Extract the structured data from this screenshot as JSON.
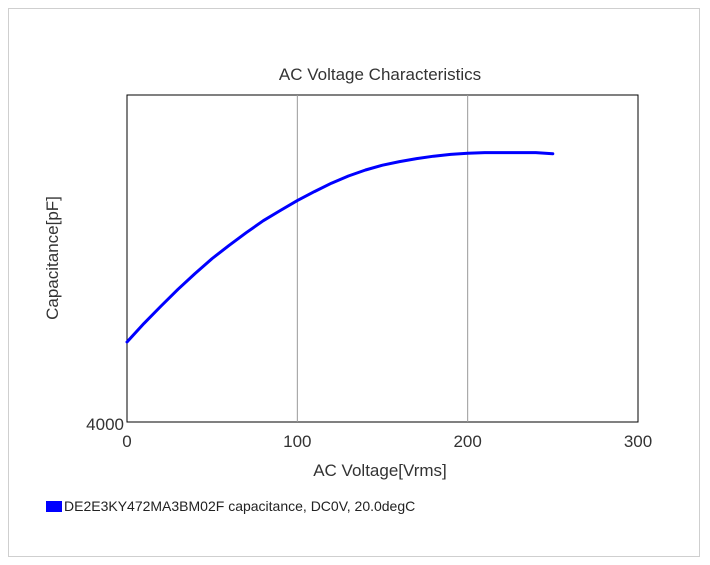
{
  "chart_data": {
    "type": "line",
    "title": "AC Voltage Characteristics",
    "xlabel": "AC Voltage[Vrms]",
    "ylabel": "Capacitance[pF]",
    "xlim": [
      0,
      300
    ],
    "ylim": [
      4000,
      null
    ],
    "xticks": [
      "0",
      "100",
      "200",
      "300"
    ],
    "yticks": [
      "4000"
    ],
    "grid": "vertical",
    "legend_position": "bottom-left",
    "series": [
      {
        "name": "DE2E3KY472MA3BM02F capacitance, DC0V, 20.0degC",
        "color": "#0000ff",
        "x": [
          0,
          10,
          20,
          30,
          40,
          50,
          60,
          70,
          80,
          90,
          100,
          110,
          120,
          130,
          140,
          150,
          160,
          170,
          180,
          190,
          200,
          210,
          220,
          230,
          240,
          250
        ],
        "y_norm": [
          0.2445,
          0.3014,
          0.3547,
          0.4062,
          0.4541,
          0.5,
          0.5404,
          0.5789,
          0.6155,
          0.6468,
          0.6771,
          0.7046,
          0.7303,
          0.7523,
          0.7706,
          0.7853,
          0.7963,
          0.8055,
          0.8128,
          0.8183,
          0.822,
          0.8239,
          0.8239,
          0.8239,
          0.8239,
          0.8202
        ]
      }
    ]
  }
}
